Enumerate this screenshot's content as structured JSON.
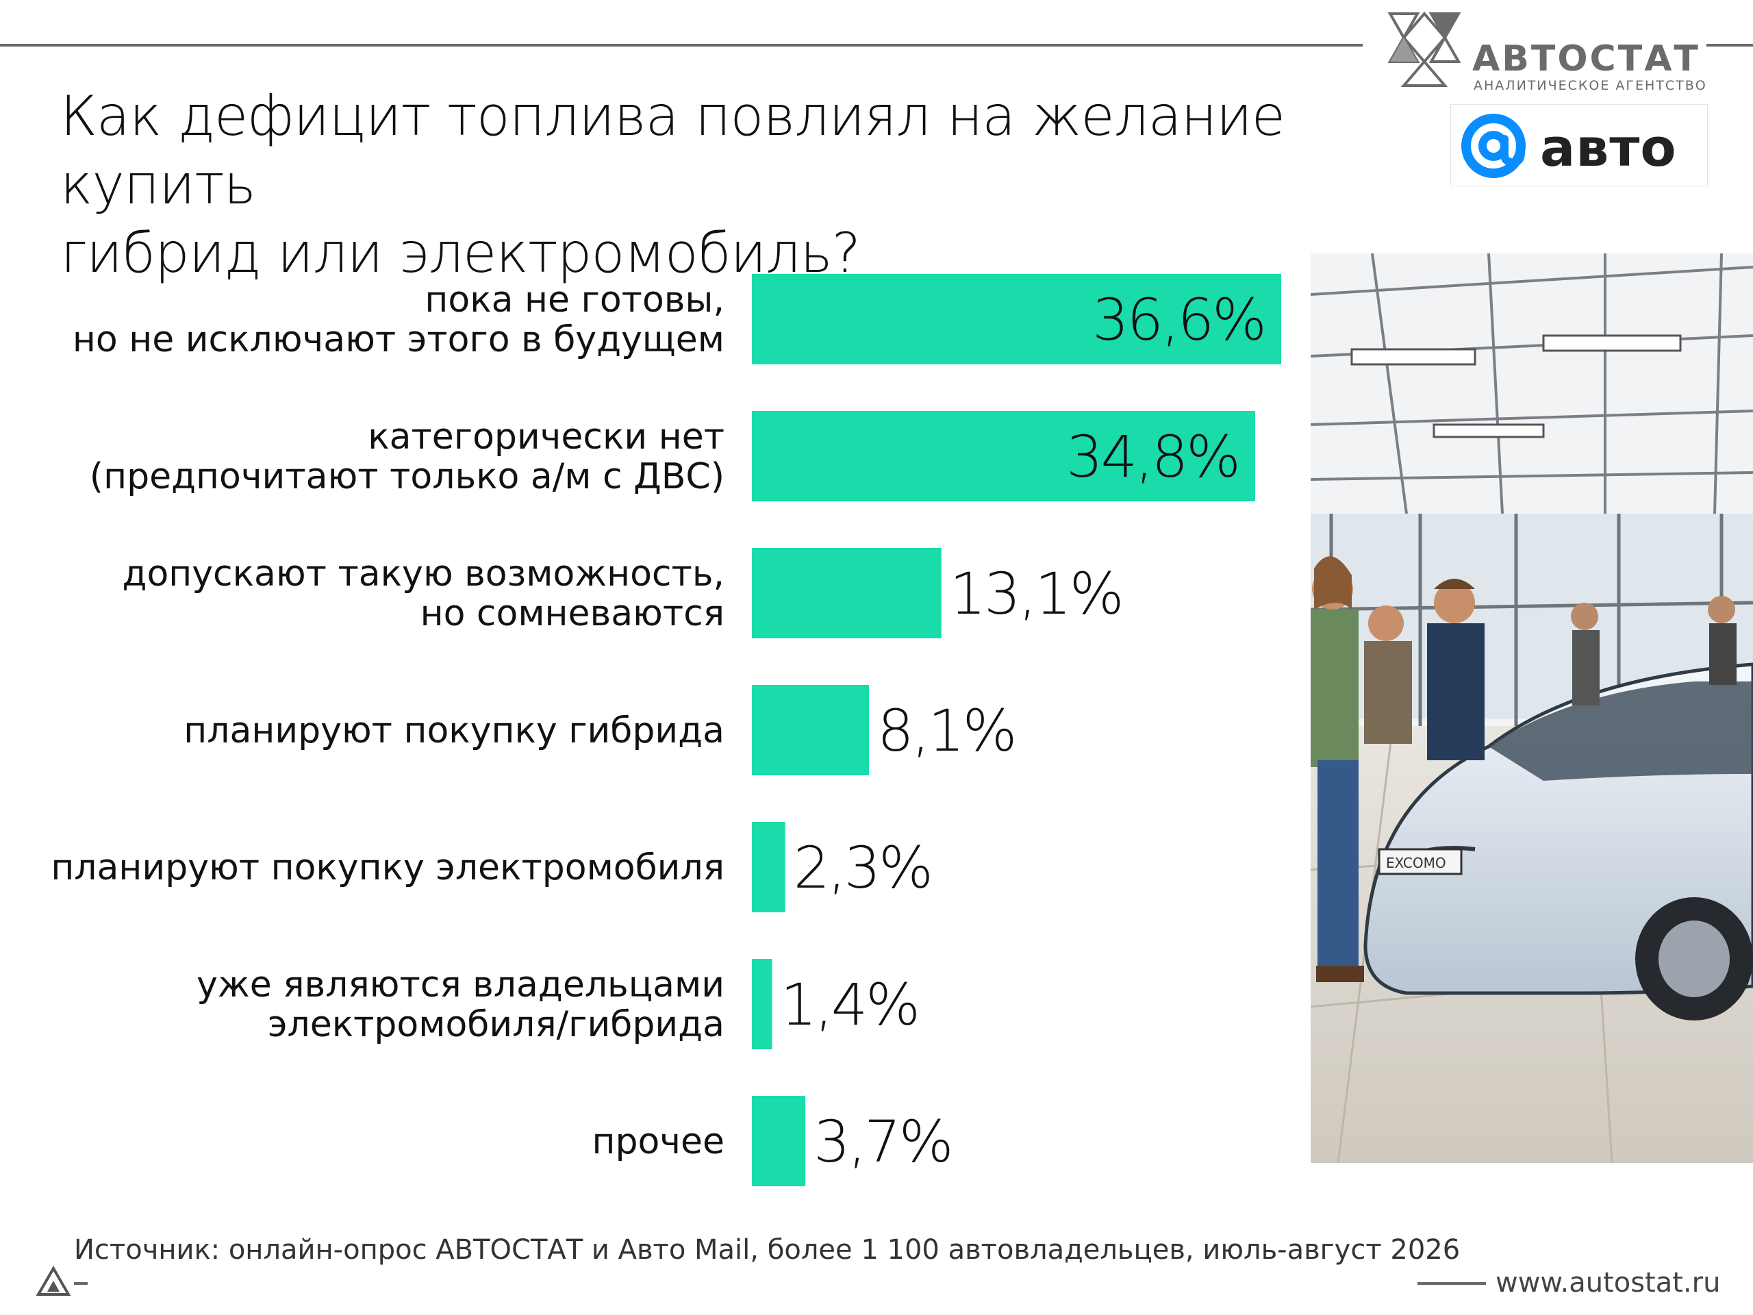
{
  "title_lines": [
    "Как дефицит топлива повлиял на желание купить",
    "гибрид или электромобиль?"
  ],
  "logos": {
    "autostat_name": "АВТОСТАТ",
    "autostat_sub": "АНАЛИТИЧЕСКОЕ АГЕНТСТВО",
    "mail_word": "авто"
  },
  "colors": {
    "bar": "#19dcaa",
    "text": "#111111",
    "rule": "#6a6a6a"
  },
  "chart_data": {
    "type": "bar",
    "orientation": "horizontal",
    "categories": [
      [
        "пока не готовы,",
        "но не исключают этого в будущем"
      ],
      [
        "категорически нет",
        "(предпочитают только а/м с ДВС)"
      ],
      [
        "допускают такую возможность,",
        "но сомневаются"
      ],
      [
        "планируют покупку гибрида"
      ],
      [
        "планируют покупку электромобиля"
      ],
      [
        "уже являются владельцами",
        "электромобиля/гибрида"
      ],
      [
        "прочее"
      ]
    ],
    "values": [
      36.6,
      34.8,
      13.1,
      8.1,
      2.3,
      1.4,
      3.7
    ],
    "value_labels": [
      "36,6%",
      "34,8%",
      "13,1%",
      "8,1%",
      "2,3%",
      "1,4%",
      "3,7%"
    ],
    "unit": "%",
    "grid": false,
    "legend": "none"
  },
  "photo_plate": "EXCOMO",
  "footer": {
    "source": "Источник: онлайн-опрос АВТОСТАТ и Авто Mail, более 1 100 автовладельцев, июль-август 2026",
    "site": "www.autostat.ru"
  }
}
